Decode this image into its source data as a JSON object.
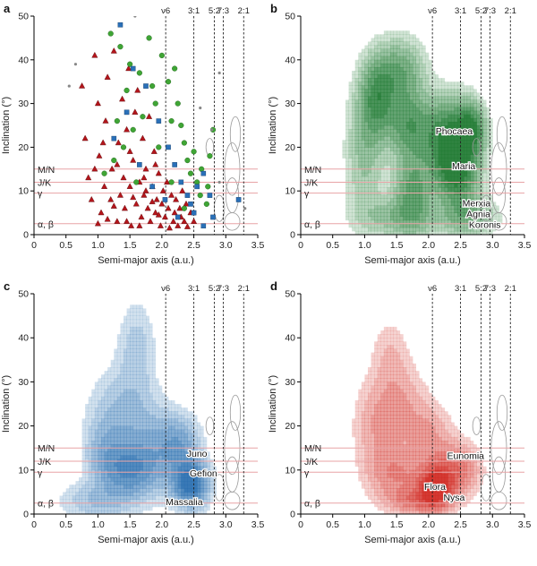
{
  "figure": {
    "resonance_labels": [
      "ν6",
      "3:1",
      "5:2",
      "7:3",
      "2:1"
    ],
    "family_lines": [
      {
        "label": "M/N",
        "inclination": 15
      },
      {
        "label": "J/K",
        "inclination": 12
      },
      {
        "label": "γ",
        "inclination": 9.5
      },
      {
        "label": "α, β",
        "inclination": 2.5
      }
    ],
    "colors": {
      "family_line": "#e8a3a6",
      "resonance_line": "#222222",
      "red_marker": "#b3151b",
      "green_marker": "#3fa535",
      "blue_marker": "#2a70b8",
      "grey_marker": "#888888",
      "contour_grey": "#9a9a9a"
    }
  },
  "chart_data": [
    {
      "panel_label": "a",
      "type": "scatter",
      "xlabel": "Semi-major axis (a.u.)",
      "ylabel": "Inclination (°)",
      "xlim": [
        0,
        3.5
      ],
      "ylim": [
        0,
        50
      ],
      "xticks": [
        "0",
        "0.5",
        "1.0",
        "1.5",
        "2.0",
        "2.5",
        "3.0",
        "3.5"
      ],
      "yticks": [
        "0",
        "10",
        "20",
        "30",
        "40",
        "50"
      ],
      "resonances_au": [
        2.06,
        2.5,
        2.82,
        2.96,
        3.28
      ],
      "series": [
        {
          "marker": "triangle",
          "color": "#b3151b",
          "points": [
            [
              0.75,
              34
            ],
            [
              0.8,
              22
            ],
            [
              0.85,
              13
            ],
            [
              0.9,
              8
            ],
            [
              0.95,
              41
            ],
            [
              1.0,
              30
            ],
            [
              1.02,
              18
            ],
            [
              1.05,
              5
            ],
            [
              1.1,
              11
            ],
            [
              1.12,
              26
            ],
            [
              1.15,
              36
            ],
            [
              1.2,
              8
            ],
            [
              1.22,
              15
            ],
            [
              1.25,
              42
            ],
            [
              1.3,
              3
            ],
            [
              1.32,
              21
            ],
            [
              1.35,
              9
            ],
            [
              1.38,
              31
            ],
            [
              1.4,
              13
            ],
            [
              1.42,
              6
            ],
            [
              1.45,
              24
            ],
            [
              1.48,
              38
            ],
            [
              1.5,
              11
            ],
            [
              1.52,
              2
            ],
            [
              1.55,
              17
            ],
            [
              1.58,
              28
            ],
            [
              1.6,
              7
            ],
            [
              1.62,
              33
            ],
            [
              1.65,
              12
            ],
            [
              1.68,
              4
            ],
            [
              1.7,
              22
            ],
            [
              1.72,
              9
            ],
            [
              1.75,
              15
            ],
            [
              1.78,
              6
            ],
            [
              1.8,
              27
            ],
            [
              1.82,
              3
            ],
            [
              1.85,
              11
            ],
            [
              1.88,
              19
            ],
            [
              1.9,
              5
            ],
            [
              1.92,
              8
            ],
            [
              1.95,
              14
            ],
            [
              1.98,
              2
            ],
            [
              2.0,
              7
            ],
            [
              2.02,
              10
            ],
            [
              2.05,
              4
            ],
            [
              2.08,
              12
            ],
            [
              2.1,
              6
            ],
            [
              2.12,
              1.5
            ],
            [
              2.15,
              9
            ],
            [
              2.18,
              3
            ],
            [
              2.2,
              5
            ],
            [
              2.22,
              8
            ],
            [
              2.25,
              2
            ],
            [
              2.28,
              6
            ],
            [
              2.3,
              4
            ],
            [
              2.32,
              10
            ],
            [
              2.35,
              3
            ],
            [
              2.38,
              7
            ],
            [
              2.4,
              1.8
            ],
            [
              2.45,
              5
            ],
            [
              2.5,
              3
            ],
            [
              1.0,
              2.5
            ],
            [
              1.15,
              3.5
            ],
            [
              1.25,
              6.5
            ],
            [
              1.45,
              3
            ],
            [
              1.55,
              8.5
            ],
            [
              1.65,
              2
            ],
            [
              1.75,
              10
            ],
            [
              1.85,
              7.5
            ],
            [
              1.95,
              4.5
            ],
            [
              0.95,
              15
            ],
            [
              1.08,
              21
            ],
            [
              1.3,
              16
            ],
            [
              1.5,
              19
            ],
            [
              1.72,
              13
            ],
            [
              1.9,
              16
            ]
          ]
        },
        {
          "marker": "circle",
          "color": "#3fa535",
          "points": [
            [
              1.2,
              46
            ],
            [
              1.35,
              43
            ],
            [
              1.5,
              39
            ],
            [
              1.65,
              37
            ],
            [
              1.8,
              45
            ],
            [
              2.0,
              41
            ],
            [
              2.1,
              35
            ],
            [
              2.2,
              38
            ],
            [
              2.25,
              30
            ],
            [
              2.3,
              25
            ],
            [
              2.35,
              21
            ],
            [
              2.4,
              17
            ],
            [
              2.45,
              14
            ],
            [
              2.55,
              12
            ],
            [
              2.6,
              9
            ],
            [
              2.7,
              7
            ],
            [
              1.9,
              30
            ],
            [
              1.7,
              27
            ],
            [
              1.55,
              24
            ],
            [
              1.4,
              20
            ],
            [
              1.25,
              17
            ],
            [
              1.1,
              14
            ],
            [
              1.95,
              20
            ],
            [
              2.15,
              12
            ],
            [
              2.35,
              6
            ],
            [
              2.5,
              19
            ],
            [
              2.62,
              15
            ],
            [
              2.75,
              18
            ],
            [
              2.8,
              24
            ],
            [
              2.72,
              11
            ],
            [
              2.15,
              26
            ],
            [
              1.85,
              34
            ],
            [
              1.45,
              33
            ],
            [
              1.6,
              12
            ],
            [
              1.3,
              26
            ]
          ]
        },
        {
          "marker": "square",
          "color": "#2a70b8",
          "points": [
            [
              1.35,
              48
            ],
            [
              1.55,
              38
            ],
            [
              1.75,
              34
            ],
            [
              1.95,
              26
            ],
            [
              2.1,
              20
            ],
            [
              2.2,
              16
            ],
            [
              2.3,
              12
            ],
            [
              2.4,
              9
            ],
            [
              2.45,
              7
            ],
            [
              2.5,
              5
            ],
            [
              2.55,
              11
            ],
            [
              2.65,
              14
            ],
            [
              2.75,
              9
            ],
            [
              2.8,
              4
            ],
            [
              2.65,
              2
            ],
            [
              1.45,
              28
            ],
            [
              1.25,
              22
            ],
            [
              1.65,
              16
            ],
            [
              1.85,
              11
            ],
            [
              2.05,
              8
            ],
            [
              2.25,
              4
            ],
            [
              3.2,
              8
            ]
          ]
        },
        {
          "marker": "dot",
          "color": "#888888",
          "points": [
            [
              0.55,
              34
            ],
            [
              0.65,
              39
            ],
            [
              1.58,
              50
            ],
            [
              2.78,
              24
            ],
            [
              2.6,
              29
            ],
            [
              2.9,
              12
            ],
            [
              3.3,
              6
            ],
            [
              2.9,
              37
            ]
          ]
        }
      ]
    },
    {
      "panel_label": "b",
      "type": "heatmap",
      "xlabel": "Semi-major axis (a.u.)",
      "ylabel": "Inclination (°)",
      "xlim": [
        0,
        3.5
      ],
      "ylim": [
        0,
        50
      ],
      "xticks": [
        "0",
        "0.5",
        "1.0",
        "1.5",
        "2.0",
        "2.5",
        "3.0",
        "3.5"
      ],
      "yticks": [
        "0",
        "10",
        "20",
        "30",
        "40",
        "50"
      ],
      "color": "#1f7a32",
      "resonances_au": [
        2.06,
        2.5,
        2.82,
        2.96,
        3.28
      ],
      "annotations": [
        {
          "text": "Phocaea",
          "x": 2.4,
          "y": 23
        },
        {
          "text": "Maria",
          "x": 2.55,
          "y": 15
        },
        {
          "text": "Merxia",
          "x": 2.75,
          "y": 6.5
        },
        {
          "text": "Agnia",
          "x": 2.78,
          "y": 4
        },
        {
          "text": "Koronis",
          "x": 2.88,
          "y": 1.5
        }
      ],
      "density_peaks": [
        {
          "x": 1.2,
          "y": 31,
          "sx": 0.18,
          "sy": 6,
          "w": 0.65
        },
        {
          "x": 1.55,
          "y": 37,
          "sx": 0.25,
          "sy": 5,
          "w": 0.5
        },
        {
          "x": 1.7,
          "y": 25,
          "sx": 0.22,
          "sy": 5,
          "w": 0.6
        },
        {
          "x": 1.75,
          "y": 10,
          "sx": 0.2,
          "sy": 6,
          "w": 0.55
        },
        {
          "x": 2.3,
          "y": 22,
          "sx": 0.25,
          "sy": 6,
          "w": 0.85
        },
        {
          "x": 2.45,
          "y": 14,
          "sx": 0.22,
          "sy": 5,
          "w": 0.8
        },
        {
          "x": 2.65,
          "y": 24,
          "sx": 0.15,
          "sy": 4,
          "w": 0.8
        },
        {
          "x": 1.0,
          "y": 19,
          "sx": 0.2,
          "sy": 10,
          "w": 0.3
        },
        {
          "x": 1.5,
          "y": 4,
          "sx": 0.4,
          "sy": 3,
          "w": 0.3
        },
        {
          "x": 2.6,
          "y": 4,
          "sx": 0.3,
          "sy": 3,
          "w": 0.4
        }
      ]
    },
    {
      "panel_label": "c",
      "type": "heatmap",
      "xlabel": "Semi-major axis (a.u.)",
      "ylabel": "Inclination (°)",
      "xlim": [
        0,
        3.5
      ],
      "ylim": [
        0,
        50
      ],
      "xticks": [
        "0",
        "0.5",
        "1.0",
        "1.5",
        "2.0",
        "2.5",
        "3.0",
        "3.5"
      ],
      "yticks": [
        "0",
        "10",
        "20",
        "30",
        "40",
        "50"
      ],
      "color": "#2a6fb0",
      "resonances_au": [
        2.06,
        2.5,
        2.82,
        2.96,
        3.28
      ],
      "annotations": [
        {
          "text": "Juno",
          "x": 2.55,
          "y": 13
        },
        {
          "text": "Gefion",
          "x": 2.65,
          "y": 8.5
        },
        {
          "text": "Massalia",
          "x": 2.35,
          "y": 2
        }
      ],
      "density_peaks": [
        {
          "x": 1.5,
          "y": 10,
          "sx": 0.25,
          "sy": 4,
          "w": 0.6
        },
        {
          "x": 2.45,
          "y": 7,
          "sx": 0.18,
          "sy": 3.5,
          "w": 1.0
        },
        {
          "x": 1.4,
          "y": 22,
          "sx": 0.35,
          "sy": 7,
          "w": 0.3
        },
        {
          "x": 1.6,
          "y": 38,
          "sx": 0.2,
          "sy": 7,
          "w": 0.2
        },
        {
          "x": 1.1,
          "y": 13,
          "sx": 0.2,
          "sy": 5,
          "w": 0.3
        },
        {
          "x": 2.0,
          "y": 14,
          "sx": 0.3,
          "sy": 6,
          "w": 0.35
        },
        {
          "x": 2.3,
          "y": 16,
          "sx": 0.2,
          "sy": 4,
          "w": 0.3
        },
        {
          "x": 1.0,
          "y": 3,
          "sx": 0.4,
          "sy": 3,
          "w": 0.25
        }
      ]
    },
    {
      "panel_label": "d",
      "type": "heatmap",
      "xlabel": "Semi-major axis (a.u.)",
      "ylabel": "Inclination (°)",
      "xlim": [
        0,
        3.5
      ],
      "ylim": [
        0,
        50
      ],
      "xticks": [
        "0",
        "0.5",
        "1.0",
        "1.5",
        "2.0",
        "2.5",
        "3.0",
        "3.5"
      ],
      "yticks": [
        "0",
        "10",
        "20",
        "30",
        "40",
        "50"
      ],
      "color": "#d12a22",
      "resonances_au": [
        2.06,
        2.5,
        2.82,
        2.96,
        3.28
      ],
      "annotations": [
        {
          "text": "Eunomia",
          "x": 2.58,
          "y": 12.5
        },
        {
          "text": "Flora",
          "x": 2.1,
          "y": 5.5
        },
        {
          "text": "Nysa",
          "x": 2.4,
          "y": 3
        }
      ],
      "density_peaks": [
        {
          "x": 2.1,
          "y": 6,
          "sx": 0.18,
          "sy": 3,
          "w": 1.0
        },
        {
          "x": 1.5,
          "y": 9,
          "sx": 0.3,
          "sy": 4,
          "w": 0.35
        },
        {
          "x": 1.2,
          "y": 20,
          "sx": 0.25,
          "sy": 7,
          "w": 0.25
        },
        {
          "x": 1.6,
          "y": 25,
          "sx": 0.25,
          "sy": 6,
          "w": 0.2
        },
        {
          "x": 1.4,
          "y": 36,
          "sx": 0.2,
          "sy": 6,
          "w": 0.15
        },
        {
          "x": 2.4,
          "y": 10,
          "sx": 0.25,
          "sy": 4,
          "w": 0.5
        },
        {
          "x": 2.0,
          "y": 18,
          "sx": 0.25,
          "sy": 5,
          "w": 0.25
        },
        {
          "x": 1.8,
          "y": 3,
          "sx": 0.3,
          "sy": 2,
          "w": 0.4
        }
      ]
    }
  ]
}
